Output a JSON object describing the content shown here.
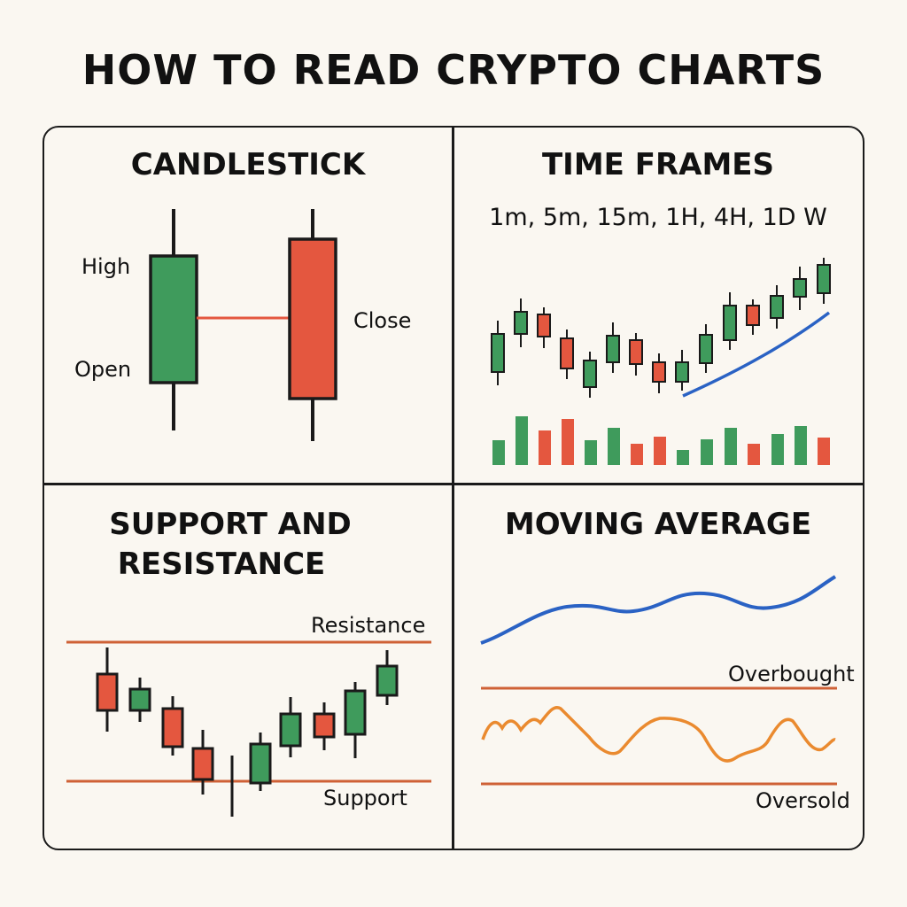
{
  "title": "HOW TO READ CRYPTO CHARTS",
  "colors": {
    "green": "#3f9b5c",
    "red": "#e4573f",
    "blue": "#2a62c4",
    "orange": "#ea8a2f",
    "level_line": "#cf6136",
    "border": "#1a1a1a",
    "background": "#faf7f1"
  },
  "panels": {
    "candlestick": {
      "title": "CANDLESTICK",
      "labels": {
        "high": "High",
        "open": "Open",
        "close": "Close"
      },
      "candles": [
        {
          "direction": "bullish",
          "color": "green"
        },
        {
          "direction": "bearish",
          "color": "red"
        }
      ]
    },
    "time_frames": {
      "title": "TIME FRAMES",
      "intervals": "1m, 5m, 15m, 1H, 4H, 1D W",
      "trend": "rising"
    },
    "support_resistance": {
      "title_line1": "SUPPORT AND",
      "title_line2": "RESISTANCE",
      "resistance_label": "Resistance",
      "support_label": "Support"
    },
    "moving_average": {
      "title": "MOVING AVERAGE",
      "overbought_label": "Overbought",
      "oversold_label": "Oversold"
    }
  }
}
